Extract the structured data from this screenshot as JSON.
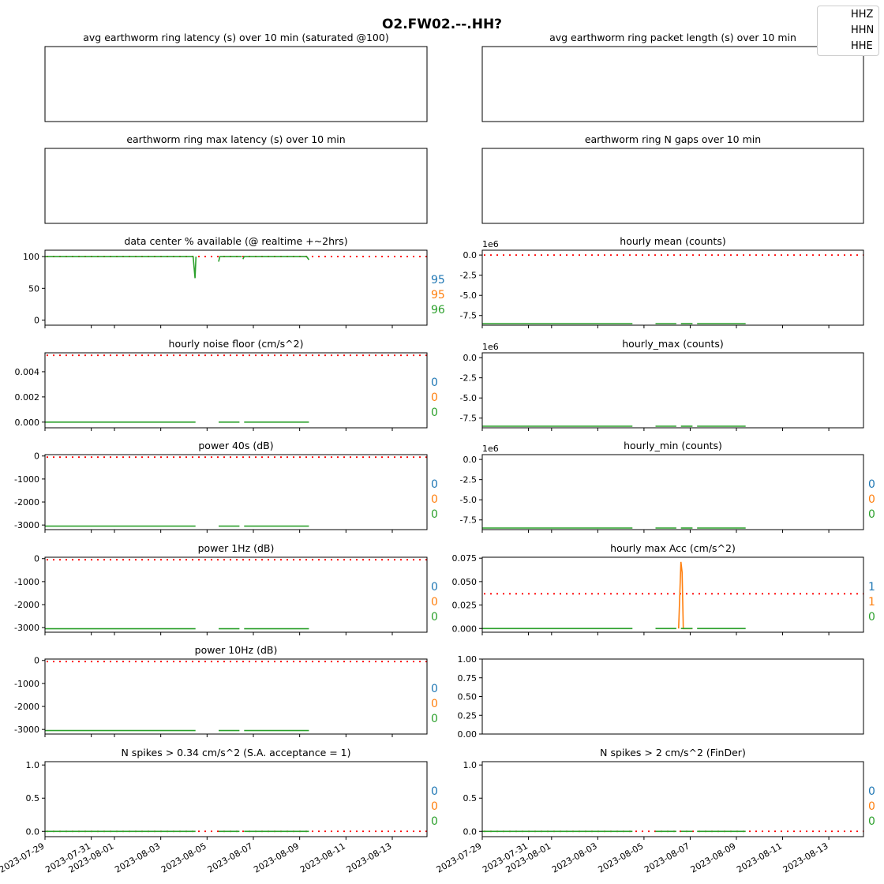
{
  "figure": {
    "title": "O2.FW02.--.HH?",
    "legend": [
      "HHZ",
      "HHN",
      "HHE"
    ]
  },
  "colors": {
    "HHZ": "#1f77b4",
    "HHN": "#ff7f0e",
    "HHE": "#2ca02c",
    "threshold": "#ff0000"
  },
  "x_ticks": [
    "2023-07-29",
    "2023-07-31",
    "2023-08-01",
    "2023-08-03",
    "2023-08-05",
    "2023-08-07",
    "2023-08-09",
    "2023-08-11",
    "2023-08-13"
  ],
  "chart_data": [
    {
      "id": "p1",
      "type": "line",
      "title": "avg earthworm ring latency (s)   over 10 min (saturated @100)",
      "series": []
    },
    {
      "id": "p2",
      "type": "line",
      "title": "avg earthworm ring packet length (s)   over 10 min",
      "series": []
    },
    {
      "id": "p3",
      "type": "line",
      "title": "earthworm ring max latency (s)   over 10 min",
      "series": []
    },
    {
      "id": "p4",
      "type": "line",
      "title": "earthworm ring N gaps   over 10 min",
      "series": []
    },
    {
      "id": "p5",
      "type": "line",
      "title": "data center % available (@ realtime +~2hrs)",
      "ylim": [
        -8,
        110
      ],
      "yticks": [
        "100",
        "50",
        "0"
      ],
      "threshold": 100,
      "side_values": [
        "95",
        "95",
        "96"
      ],
      "series": [
        {
          "name": "HHE",
          "segments": [
            [
              [
                0,
                100
              ],
              [
                6.4,
                100
              ],
              [
                6.48,
                66
              ],
              [
                6.52,
                100
              ]
            ],
            [
              [
                7.5,
                92
              ],
              [
                7.55,
                100
              ],
              [
                8.5,
                100
              ]
            ],
            [
              [
                8.55,
                96
              ],
              [
                8.6,
                100
              ],
              [
                11.3,
                100
              ],
              [
                11.4,
                95
              ]
            ]
          ]
        }
      ]
    },
    {
      "id": "p6",
      "type": "line",
      "title": "hourly mean (counts)",
      "offset_label": "1e6",
      "ylim": [
        -8.7,
        0.6
      ],
      "yticks": [
        "0.0",
        "-2.5",
        "-5.0",
        "-7.5"
      ],
      "threshold": 0,
      "series": [
        {
          "name": "HHE",
          "segments": [
            [
              [
                0,
                -8.5
              ],
              [
                6.5,
                -8.5
              ]
            ],
            [
              [
                7.5,
                -8.5
              ],
              [
                8.4,
                -8.5
              ]
            ],
            [
              [
                8.6,
                -8.5
              ],
              [
                9.1,
                -8.5
              ]
            ],
            [
              [
                9.3,
                -8.5
              ],
              [
                11.4,
                -8.5
              ]
            ]
          ]
        }
      ]
    },
    {
      "id": "p7",
      "type": "line",
      "title": "hourly noise floor (cm/s^2)",
      "ylim": [
        -0.00045,
        0.0055
      ],
      "yticks": [
        "0.004",
        "0.002",
        "0.000"
      ],
      "threshold": 0.0053,
      "side_values": [
        "0",
        "0",
        "0"
      ],
      "series": [
        {
          "name": "HHE",
          "segments": [
            [
              [
                0,
                0
              ],
              [
                6.5,
                0
              ]
            ],
            [
              [
                7.5,
                0
              ],
              [
                8.4,
                0
              ]
            ],
            [
              [
                8.6,
                0
              ],
              [
                11.4,
                0
              ]
            ]
          ]
        }
      ]
    },
    {
      "id": "p8",
      "type": "line",
      "title": "hourly_max (counts)",
      "offset_label": "1e6",
      "ylim": [
        -8.7,
        0.6
      ],
      "yticks": [
        "0.0",
        "-2.5",
        "-5.0",
        "-7.5"
      ],
      "series": [
        {
          "name": "HHE",
          "segments": [
            [
              [
                0,
                -8.5
              ],
              [
                6.5,
                -8.5
              ]
            ],
            [
              [
                7.5,
                -8.5
              ],
              [
                8.4,
                -8.5
              ]
            ],
            [
              [
                8.6,
                -8.5
              ],
              [
                9.1,
                -8.5
              ]
            ],
            [
              [
                9.3,
                -8.5
              ],
              [
                11.4,
                -8.5
              ]
            ]
          ]
        }
      ]
    },
    {
      "id": "p9",
      "type": "line",
      "title": "power 40s (dB)",
      "ylim": [
        -3200,
        60
      ],
      "yticks": [
        "0",
        "-1000",
        "-2000",
        "-3000"
      ],
      "threshold": -50,
      "side_values": [
        "0",
        "0",
        "0"
      ],
      "series": [
        {
          "name": "HHE",
          "segments": [
            [
              [
                0,
                -3050
              ],
              [
                6.5,
                -3050
              ]
            ],
            [
              [
                7.5,
                -3050
              ],
              [
                8.4,
                -3050
              ]
            ],
            [
              [
                8.6,
                -3050
              ],
              [
                11.4,
                -3050
              ]
            ]
          ]
        }
      ]
    },
    {
      "id": "p10",
      "type": "line",
      "title": "hourly_min (counts)",
      "offset_label": "1e6",
      "ylim": [
        -8.7,
        0.6
      ],
      "yticks": [
        "0.0",
        "-2.5",
        "-5.0",
        "-7.5"
      ],
      "side_values": [
        "0",
        "0",
        "0"
      ],
      "series": [
        {
          "name": "HHE",
          "segments": [
            [
              [
                0,
                -8.5
              ],
              [
                6.5,
                -8.5
              ]
            ],
            [
              [
                7.5,
                -8.5
              ],
              [
                8.4,
                -8.5
              ]
            ],
            [
              [
                8.6,
                -8.5
              ],
              [
                9.1,
                -8.5
              ]
            ],
            [
              [
                9.3,
                -8.5
              ],
              [
                11.4,
                -8.5
              ]
            ]
          ]
        }
      ]
    },
    {
      "id": "p11",
      "type": "line",
      "title": "power 1Hz (dB)",
      "ylim": [
        -3200,
        60
      ],
      "yticks": [
        "0",
        "-1000",
        "-2000",
        "-3000"
      ],
      "threshold": -50,
      "side_values": [
        "0",
        "0",
        "0"
      ],
      "series": [
        {
          "name": "HHE",
          "segments": [
            [
              [
                0,
                -3050
              ],
              [
                6.5,
                -3050
              ]
            ],
            [
              [
                7.5,
                -3050
              ],
              [
                8.4,
                -3050
              ]
            ],
            [
              [
                8.6,
                -3050
              ],
              [
                11.4,
                -3050
              ]
            ]
          ]
        }
      ]
    },
    {
      "id": "p12",
      "type": "line",
      "title": "hourly max Acc (cm/s^2)",
      "ylim": [
        -0.004,
        0.076
      ],
      "yticks": [
        "0.075",
        "0.050",
        "0.025",
        "0.000"
      ],
      "threshold": 0.037,
      "side_values": [
        "1",
        "1",
        "0"
      ],
      "series": [
        {
          "name": "HHN",
          "segments": [
            [
              [
                8.5,
                0
              ],
              [
                8.6,
                0.071
              ],
              [
                8.65,
                0.06
              ],
              [
                8.7,
                0
              ],
              [
                9.1,
                0
              ]
            ]
          ]
        },
        {
          "name": "HHE",
          "segments": [
            [
              [
                0,
                0
              ],
              [
                6.5,
                0
              ]
            ],
            [
              [
                7.5,
                0
              ],
              [
                8.4,
                0
              ]
            ],
            [
              [
                8.6,
                0
              ],
              [
                9.1,
                0
              ]
            ],
            [
              [
                9.3,
                0
              ],
              [
                11.4,
                0
              ]
            ]
          ]
        }
      ]
    },
    {
      "id": "p13",
      "type": "line",
      "title": "power 10Hz (dB)",
      "ylim": [
        -3200,
        60
      ],
      "yticks": [
        "0",
        "-1000",
        "-2000",
        "-3000"
      ],
      "threshold": -50,
      "side_values": [
        "0",
        "0",
        "0"
      ],
      "series": [
        {
          "name": "HHE",
          "segments": [
            [
              [
                0,
                -3050
              ],
              [
                6.5,
                -3050
              ]
            ],
            [
              [
                7.5,
                -3050
              ],
              [
                8.4,
                -3050
              ]
            ],
            [
              [
                8.6,
                -3050
              ],
              [
                11.4,
                -3050
              ]
            ]
          ]
        }
      ]
    },
    {
      "id": "p14",
      "type": "line",
      "title": "",
      "ylim": [
        0,
        1
      ],
      "yticks": [
        "1.00",
        "0.75",
        "0.50",
        "0.25",
        "0.00"
      ],
      "series": []
    },
    {
      "id": "p15",
      "type": "line",
      "title": "N spikes > 0.34 cm/s^2 (S.A. acceptance = 1)",
      "ylim": [
        -0.08,
        1.05
      ],
      "yticks": [
        "1.0",
        "0.5",
        "0.0"
      ],
      "threshold": 0,
      "side_values": [
        "0",
        "0",
        "0"
      ],
      "series": [
        {
          "name": "HHE",
          "segments": [
            [
              [
                0,
                0
              ],
              [
                6.5,
                0
              ]
            ],
            [
              [
                7.5,
                0
              ],
              [
                8.4,
                0
              ]
            ],
            [
              [
                8.6,
                0
              ],
              [
                11.4,
                0
              ]
            ]
          ]
        }
      ]
    },
    {
      "id": "p16",
      "type": "line",
      "title": "N spikes > 2 cm/s^2 (FinDer)",
      "ylim": [
        -0.08,
        1.05
      ],
      "yticks": [
        "1.0",
        "0.5",
        "0.0"
      ],
      "threshold": 0,
      "side_values": [
        "0",
        "0",
        "0"
      ],
      "series": [
        {
          "name": "HHE",
          "segments": [
            [
              [
                0,
                0
              ],
              [
                6.5,
                0
              ]
            ],
            [
              [
                7.5,
                0
              ],
              [
                8.4,
                0
              ]
            ],
            [
              [
                8.6,
                0
              ],
              [
                9.1,
                0
              ]
            ],
            [
              [
                9.3,
                0
              ],
              [
                11.4,
                0
              ]
            ]
          ]
        }
      ]
    }
  ]
}
